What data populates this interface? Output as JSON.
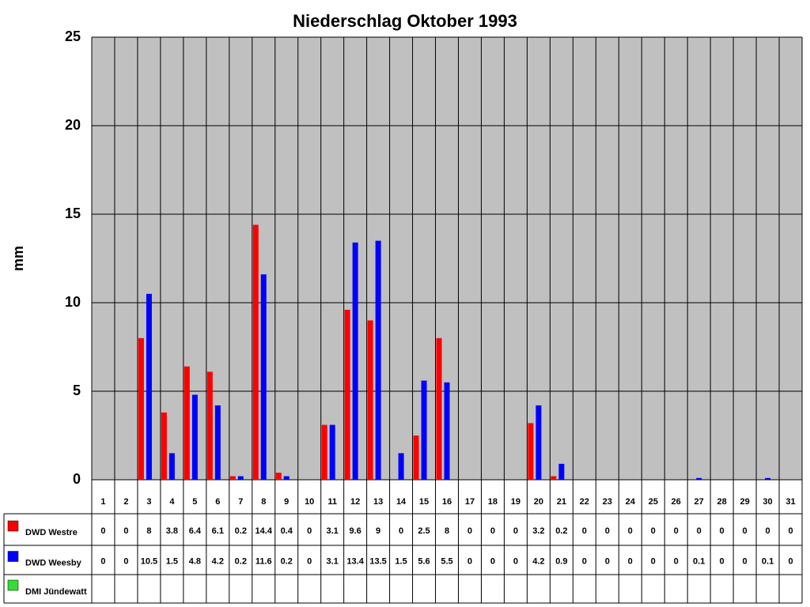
{
  "chart_data": {
    "type": "bar",
    "title": "Niederschlag Oktober 1993",
    "y_label": "mm",
    "categories": [
      "1",
      "2",
      "3",
      "4",
      "5",
      "6",
      "7",
      "8",
      "9",
      "10",
      "11",
      "12",
      "13",
      "14",
      "15",
      "16",
      "17",
      "18",
      "19",
      "20",
      "21",
      "22",
      "23",
      "24",
      "25",
      "26",
      "27",
      "28",
      "29",
      "30",
      "31"
    ],
    "series": [
      {
        "name": "DWD Westre",
        "color": "#ff0000",
        "values": [
          0,
          0,
          8,
          3.8,
          6.4,
          6.1,
          0.2,
          14.4,
          0.4,
          0,
          3.1,
          9.6,
          9,
          0,
          2.5,
          8,
          0,
          0,
          0,
          3.2,
          0.2,
          0,
          0,
          0,
          0,
          0,
          0,
          0,
          0,
          0,
          0
        ]
      },
      {
        "name": "DWD Weesby",
        "color": "#0000ff",
        "values": [
          0,
          0,
          10.5,
          1.5,
          4.8,
          4.2,
          0.2,
          11.6,
          0.2,
          0,
          3.1,
          13.4,
          13.5,
          1.5,
          5.6,
          5.5,
          0,
          0,
          0,
          4.2,
          0.9,
          0,
          0,
          0,
          0,
          0,
          0.1,
          0,
          0,
          0.1,
          0
        ]
      },
      {
        "name": "DMI Jündewatt",
        "color": "#33dd33",
        "values": [
          null,
          null,
          null,
          null,
          null,
          null,
          null,
          null,
          null,
          null,
          null,
          null,
          null,
          null,
          null,
          null,
          null,
          null,
          null,
          null,
          null,
          null,
          null,
          null,
          null,
          null,
          null,
          null,
          null,
          null,
          null
        ]
      }
    ],
    "ylim": [
      0,
      25
    ],
    "yticks": [
      0,
      5,
      10,
      15,
      20,
      25
    ],
    "grid": true
  }
}
